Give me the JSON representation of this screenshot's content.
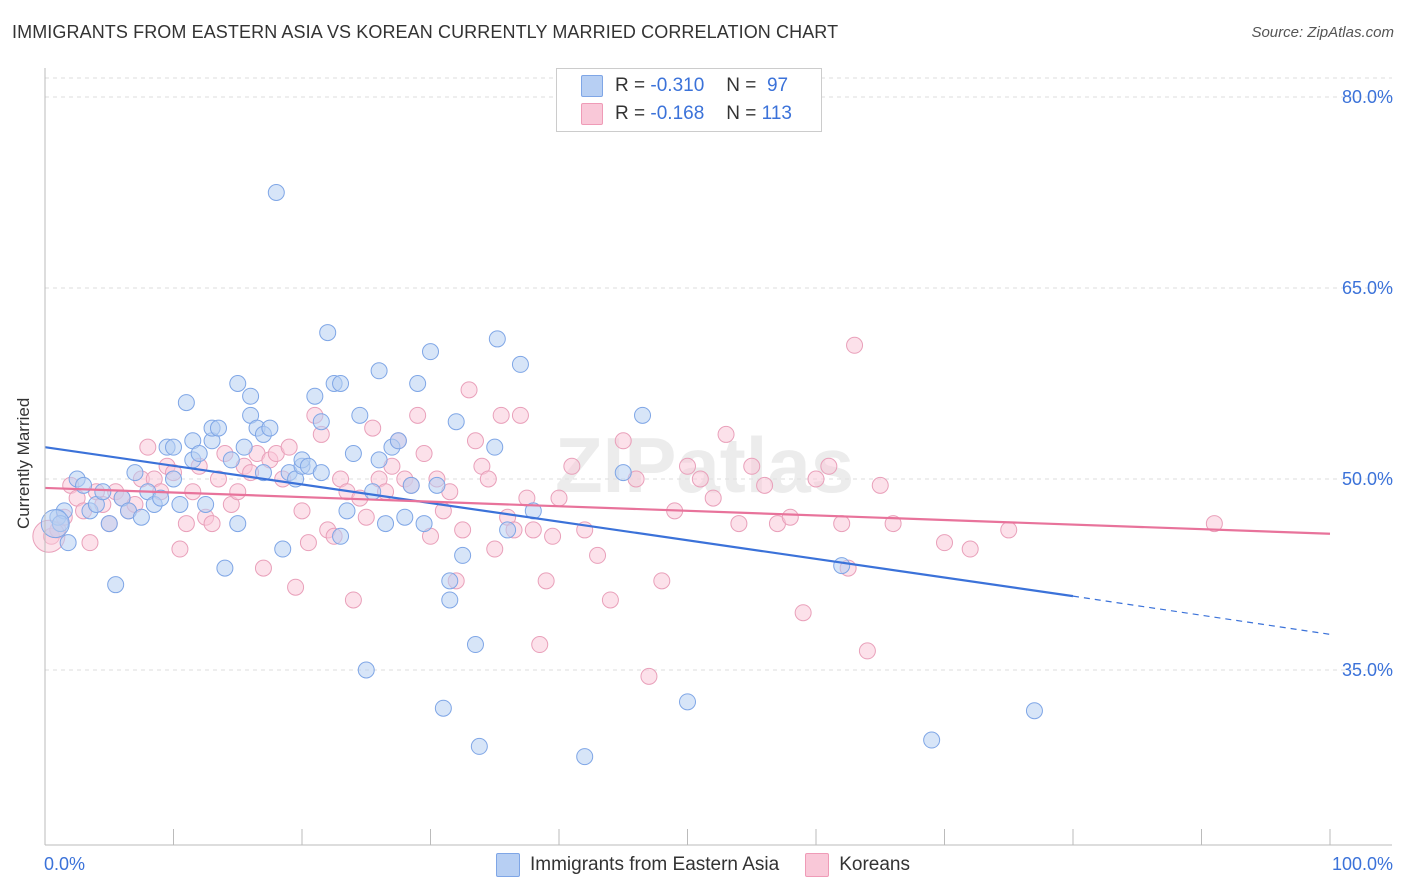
{
  "title": "IMMIGRANTS FROM EASTERN ASIA VS KOREAN CURRENTLY MARRIED CORRELATION CHART",
  "source": "Source: ZipAtlas.com",
  "watermark": "ZIPatlas",
  "legend": {
    "r_label": "R =",
    "n_label": "N =",
    "rows": [
      {
        "r": "-0.310",
        "n": "97"
      },
      {
        "r": "-0.168",
        "n": "113"
      }
    ]
  },
  "colors": {
    "blue": "#3b72d9",
    "pink": "#e8739b",
    "blue_fill": "#b7cff3",
    "pink_fill": "#f9c8d8"
  },
  "chart_data": {
    "type": "scatter",
    "title": "IMMIGRANTS FROM EASTERN ASIA VS KOREAN CURRENTLY MARRIED CORRELATION CHART",
    "xlabel": "",
    "ylabel": "Currently Married",
    "xlim": [
      0,
      100
    ],
    "ylim": [
      20,
      82
    ],
    "x_tick_labels": [
      "0.0%",
      "100.0%"
    ],
    "y_ticks": [
      35,
      50,
      65,
      80
    ],
    "y_tick_labels": [
      "35.0%",
      "50.0%",
      "65.0%",
      "80.0%"
    ],
    "grid": "horizontal dashed",
    "legend_position": "top-center",
    "series": [
      {
        "name": "Immigrants from Eastern Asia",
        "color": "#3b72d9",
        "r": -0.31,
        "n": 97,
        "trend": {
          "x0": 0,
          "y0": 52.5,
          "x1": 80,
          "y1": 40.8,
          "dash_to_x": 100,
          "dash_to_y": 37.8
        },
        "points": [
          [
            1,
            47
          ],
          [
            1.5,
            47.5
          ],
          [
            1.2,
            46.5
          ],
          [
            1.8,
            45
          ],
          [
            2.5,
            50
          ],
          [
            3,
            49.5
          ],
          [
            3.5,
            47.5
          ],
          [
            4,
            48
          ],
          [
            4.5,
            49
          ],
          [
            5,
            46.5
          ],
          [
            5.5,
            41.7
          ],
          [
            6,
            48.5
          ],
          [
            6.5,
            47.5
          ],
          [
            7,
            50.5
          ],
          [
            7.5,
            47
          ],
          [
            8,
            49
          ],
          [
            8.5,
            48
          ],
          [
            9,
            48.5
          ],
          [
            9.5,
            52.5
          ],
          [
            10,
            52.5
          ],
          [
            10,
            50
          ],
          [
            10.5,
            48
          ],
          [
            11,
            56
          ],
          [
            11.5,
            51.5
          ],
          [
            11.5,
            53
          ],
          [
            12,
            52
          ],
          [
            12.5,
            48
          ],
          [
            13,
            53
          ],
          [
            13,
            54
          ],
          [
            13.5,
            54
          ],
          [
            14,
            43
          ],
          [
            14.5,
            51.5
          ],
          [
            15,
            57.5
          ],
          [
            15,
            46.5
          ],
          [
            15.5,
            52.5
          ],
          [
            16,
            55
          ],
          [
            16,
            56.5
          ],
          [
            16.5,
            54
          ],
          [
            17,
            53.5
          ],
          [
            17,
            50.5
          ],
          [
            17.5,
            54
          ],
          [
            18,
            72.5
          ],
          [
            18.5,
            44.5
          ],
          [
            19,
            50.5
          ],
          [
            19.5,
            50
          ],
          [
            20,
            51
          ],
          [
            20,
            51.5
          ],
          [
            20.5,
            51
          ],
          [
            21,
            56.5
          ],
          [
            21.5,
            54.5
          ],
          [
            21.5,
            50.5
          ],
          [
            22,
            61.5
          ],
          [
            22.5,
            57.5
          ],
          [
            23,
            57.5
          ],
          [
            23,
            45.5
          ],
          [
            23.5,
            47.5
          ],
          [
            24,
            52
          ],
          [
            24.5,
            55
          ],
          [
            25,
            35
          ],
          [
            25.5,
            49
          ],
          [
            26,
            58.5
          ],
          [
            26,
            51.5
          ],
          [
            26.5,
            46.5
          ],
          [
            27,
            52.5
          ],
          [
            27.5,
            53
          ],
          [
            28,
            47
          ],
          [
            28.5,
            49.5
          ],
          [
            29,
            57.5
          ],
          [
            29.5,
            46.5
          ],
          [
            30,
            60
          ],
          [
            30.5,
            49.5
          ],
          [
            31,
            32
          ],
          [
            31.5,
            40.5
          ],
          [
            31.5,
            42
          ],
          [
            32,
            54.5
          ],
          [
            32.5,
            44
          ],
          [
            33.5,
            37
          ],
          [
            33.8,
            29
          ],
          [
            35,
            52.5
          ],
          [
            35.2,
            61
          ],
          [
            36,
            46
          ],
          [
            37,
            59
          ],
          [
            38,
            47.5
          ],
          [
            42,
            28.2
          ],
          [
            45,
            50.5
          ],
          [
            46.5,
            55
          ],
          [
            50,
            32.5
          ],
          [
            62,
            43.2
          ],
          [
            69,
            29.5
          ],
          [
            77,
            31.8
          ]
        ]
      },
      {
        "name": "Koreans",
        "color": "#e8739b",
        "r": -0.168,
        "n": 113,
        "trend": {
          "x0": 0,
          "y0": 49.3,
          "x1": 100,
          "y1": 45.7
        },
        "points": [
          [
            0.5,
            45.5
          ],
          [
            1,
            46
          ],
          [
            1.5,
            47
          ],
          [
            2,
            49.5
          ],
          [
            2.5,
            48.5
          ],
          [
            3,
            47.5
          ],
          [
            3.5,
            45
          ],
          [
            4,
            49
          ],
          [
            4.5,
            48
          ],
          [
            5,
            46.5
          ],
          [
            5.5,
            49
          ],
          [
            6,
            48.5
          ],
          [
            6.5,
            47.5
          ],
          [
            7,
            48
          ],
          [
            7.5,
            50
          ],
          [
            8,
            52.5
          ],
          [
            8.5,
            50
          ],
          [
            9,
            49
          ],
          [
            9.5,
            51
          ],
          [
            10,
            50.5
          ],
          [
            10.5,
            44.5
          ],
          [
            11,
            46.5
          ],
          [
            11.5,
            49
          ],
          [
            12,
            51
          ],
          [
            12.5,
            47
          ],
          [
            13,
            46.5
          ],
          [
            13.5,
            50
          ],
          [
            14,
            52
          ],
          [
            14.5,
            48
          ],
          [
            15,
            49
          ],
          [
            15.5,
            51
          ],
          [
            16,
            50.5
          ],
          [
            16.5,
            52
          ],
          [
            17,
            43
          ],
          [
            17.5,
            51.5
          ],
          [
            18,
            52
          ],
          [
            18.5,
            50
          ],
          [
            19,
            52.5
          ],
          [
            19.5,
            41.5
          ],
          [
            20,
            47.5
          ],
          [
            20.5,
            45
          ],
          [
            21,
            55
          ],
          [
            21.5,
            53.5
          ],
          [
            22,
            46
          ],
          [
            22.5,
            45.5
          ],
          [
            23,
            50
          ],
          [
            23.5,
            49
          ],
          [
            24,
            40.5
          ],
          [
            24.5,
            48.5
          ],
          [
            25,
            47
          ],
          [
            25.5,
            54
          ],
          [
            26,
            50
          ],
          [
            26.5,
            49
          ],
          [
            27,
            51
          ],
          [
            27.5,
            53
          ],
          [
            28,
            50
          ],
          [
            28.5,
            49.5
          ],
          [
            29,
            55
          ],
          [
            29.5,
            52
          ],
          [
            30,
            45.5
          ],
          [
            30.5,
            50
          ],
          [
            31,
            47.5
          ],
          [
            31.5,
            49
          ],
          [
            32,
            42
          ],
          [
            32.5,
            46
          ],
          [
            33,
            57
          ],
          [
            33.5,
            53
          ],
          [
            34,
            51
          ],
          [
            34.5,
            50
          ],
          [
            35,
            44.5
          ],
          [
            35.5,
            55
          ],
          [
            36,
            47
          ],
          [
            36.5,
            46
          ],
          [
            37,
            55
          ],
          [
            37.5,
            48.5
          ],
          [
            38,
            46
          ],
          [
            38.5,
            37
          ],
          [
            39,
            42
          ],
          [
            39.5,
            45.5
          ],
          [
            40,
            48.5
          ],
          [
            41,
            51
          ],
          [
            42,
            46
          ],
          [
            43,
            44
          ],
          [
            44,
            40.5
          ],
          [
            45,
            53
          ],
          [
            46,
            50
          ],
          [
            47,
            34.5
          ],
          [
            48,
            42
          ],
          [
            49,
            47.5
          ],
          [
            50,
            51
          ],
          [
            51,
            50
          ],
          [
            52,
            48.5
          ],
          [
            53,
            53.5
          ],
          [
            54,
            46.5
          ],
          [
            55,
            51
          ],
          [
            56,
            49.5
          ],
          [
            57,
            46.5
          ],
          [
            58,
            47
          ],
          [
            59,
            39.5
          ],
          [
            60,
            50
          ],
          [
            61,
            51
          ],
          [
            62,
            46.5
          ],
          [
            62.5,
            43
          ],
          [
            63,
            60.5
          ],
          [
            64,
            36.5
          ],
          [
            65,
            49.5
          ],
          [
            66,
            46.5
          ],
          [
            70,
            45
          ],
          [
            72,
            44.5
          ],
          [
            75,
            46
          ],
          [
            91,
            46.5
          ]
        ]
      }
    ]
  },
  "bottom_legend": [
    "Immigrants from Eastern Asia",
    "Koreans"
  ]
}
